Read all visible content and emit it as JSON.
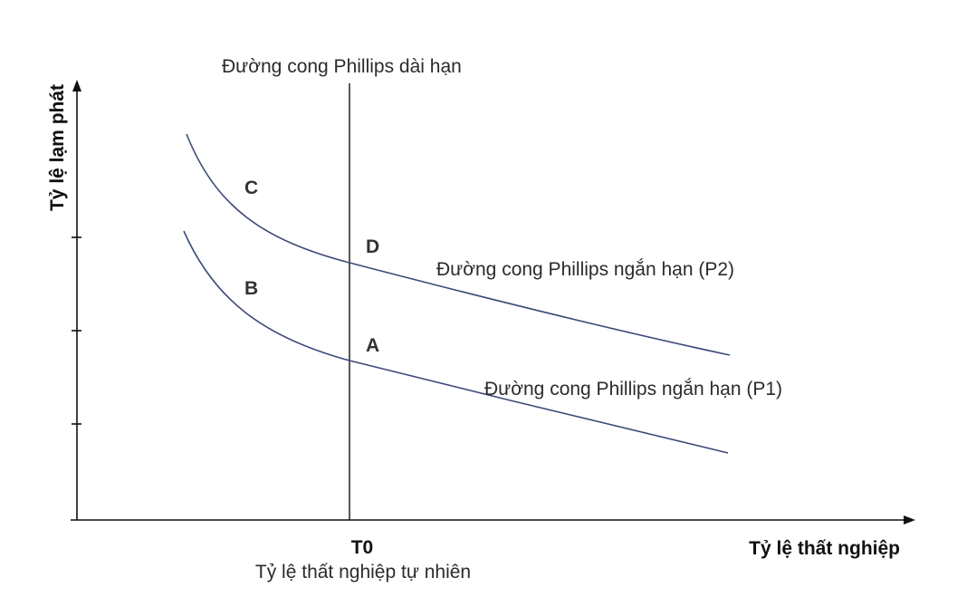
{
  "labels": {
    "y_axis": "Tỷ lệ lạm phát",
    "x_axis": "Tỷ lệ thất nghiệp",
    "long_run_curve": "Đường cong Phillips dài hạn",
    "short_run_p2": "Đường cong Phillips ngắn hạn (P2)",
    "short_run_p1": "Đường cong Phillips ngắn hạn (P1)",
    "t0": "T0",
    "natural_rate": "Tỷ lệ thất nghiệp tự nhiên"
  },
  "points": {
    "a": "A",
    "b": "B",
    "c": "C",
    "d": "D"
  },
  "colors": {
    "axis": "#111111",
    "long_run_line": "#111111",
    "short_run_curves": "#3c4a7a"
  }
}
